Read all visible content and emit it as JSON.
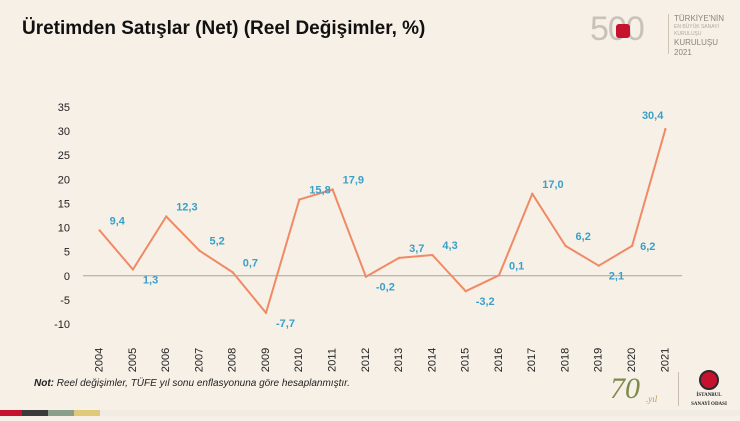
{
  "title": "Üretimden Satışlar (Net) (Reel Değişimler, %)",
  "note_prefix": "Not:",
  "note_text": " Reel değişimler, TÜFE yıl sonu enflasyonuna göre hesaplanmıştır.",
  "logo_500": {
    "number": "500",
    "line1": "TÜRKİYE'NİN",
    "line2": "EN BÜYÜK SANAYİ KURULUŞU",
    "line3": "KURULUŞU",
    "line4": "2021"
  },
  "logo_70": {
    "number": "70",
    "suffix": ".yıl"
  },
  "iso_logo": {
    "line1": "İSTANBUL",
    "line2": "SANAYİ ODASI"
  },
  "colors": {
    "line": "#f08a65",
    "label": "#3aa0c8",
    "axis_text": "#222222",
    "brand_red": "#c4122f",
    "stripe": [
      "#c4122f",
      "#3a3a3a",
      "#8a9e8c",
      "#e0c97a",
      "#f0ece4",
      "#f0ece4"
    ]
  },
  "chart_data": {
    "type": "line",
    "title": "Üretimden Satışlar (Net) (Reel Değişimler, %)",
    "xlabel": "",
    "ylabel": "",
    "categories": [
      "2004",
      "2005",
      "2006",
      "2007",
      "2008",
      "2009",
      "2010",
      "2011",
      "2012",
      "2013",
      "2014",
      "2015",
      "2016",
      "2017",
      "2018",
      "2019",
      "2020",
      "2021"
    ],
    "series": [
      {
        "values": [
          9.4,
          1.3,
          12.3,
          5.2,
          0.7,
          -7.7,
          15.8,
          17.9,
          -0.2,
          3.7,
          4.3,
          -3.2,
          0.1,
          17.0,
          6.2,
          2.1,
          6.2,
          30.4
        ],
        "labels": [
          "9,4",
          "1,3",
          "12,3",
          "5,2",
          "0,7",
          "-7,7",
          "15,8",
          "17,9",
          "-0,2",
          "3,7",
          "4,3",
          "-3,2",
          "0,1",
          "17,0",
          "6,2",
          "2,1",
          "6,2",
          "30,4"
        ]
      }
    ],
    "yticks": [
      35,
      30,
      25,
      20,
      15,
      10,
      5,
      0,
      -5,
      -10
    ],
    "ytick_labels": [
      "35",
      "30",
      "25",
      "20",
      "15",
      "10",
      "5",
      "0",
      "-5",
      "-10"
    ],
    "ylim": [
      -10,
      35
    ],
    "grid": false,
    "legend": "none"
  }
}
